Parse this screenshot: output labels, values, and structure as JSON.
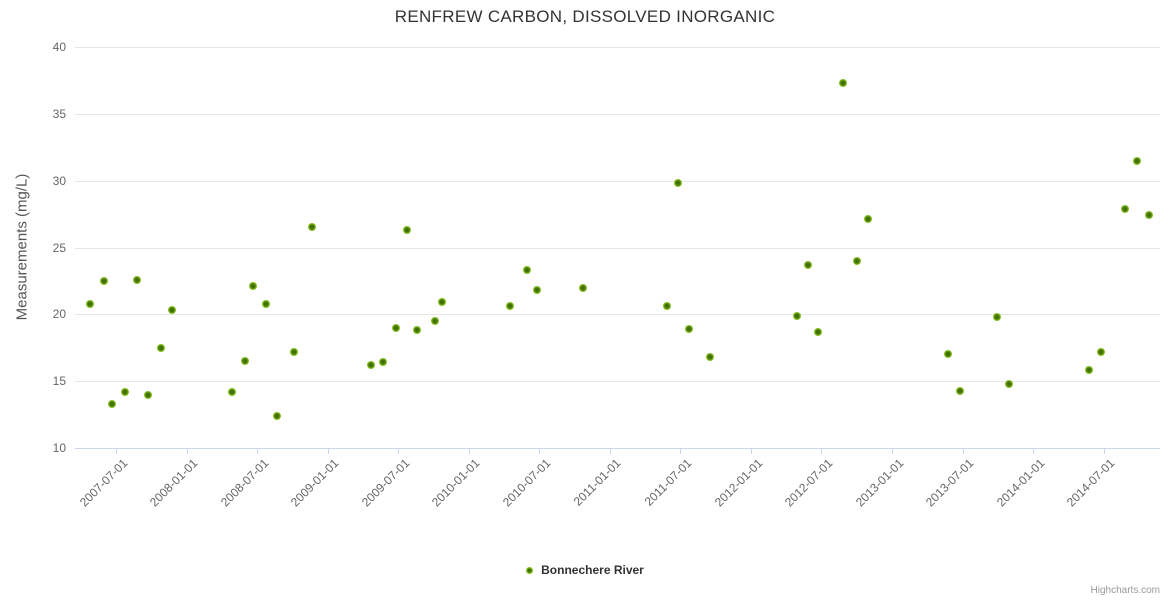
{
  "credit": "Highcharts.com",
  "chart_data": {
    "type": "scatter",
    "title": "RENFREW CARBON, DISSOLVED INORGANIC",
    "xlabel": "",
    "ylabel": "Measurements (mg/L)",
    "ylim": [
      10,
      40
    ],
    "yticks": [
      10,
      15,
      20,
      25,
      30,
      35,
      40
    ],
    "xticks": [
      "2007-07-01",
      "2008-01-01",
      "2008-07-01",
      "2009-01-01",
      "2009-07-01",
      "2010-01-01",
      "2010-07-01",
      "2011-01-01",
      "2011-07-01",
      "2012-01-01",
      "2012-07-01",
      "2013-01-01",
      "2013-07-01",
      "2014-01-01",
      "2014-07-01"
    ],
    "grid": true,
    "legend": {
      "position": "bottom",
      "entries": [
        "Bonnechere River"
      ]
    },
    "series": [
      {
        "name": "Bonnechere River",
        "color": "#76b007",
        "points": [
          {
            "date": "2007-04-25",
            "value": 20.8
          },
          {
            "date": "2007-06-01",
            "value": 22.5
          },
          {
            "date": "2007-06-22",
            "value": 13.3
          },
          {
            "date": "2007-07-25",
            "value": 14.2
          },
          {
            "date": "2007-08-24",
            "value": 22.6
          },
          {
            "date": "2007-09-22",
            "value": 14.0
          },
          {
            "date": "2007-10-27",
            "value": 17.5
          },
          {
            "date": "2007-11-24",
            "value": 20.3
          },
          {
            "date": "2008-04-27",
            "value": 14.2
          },
          {
            "date": "2008-06-01",
            "value": 16.5
          },
          {
            "date": "2008-06-20",
            "value": 22.1
          },
          {
            "date": "2008-07-25",
            "value": 20.8
          },
          {
            "date": "2008-08-22",
            "value": 12.4
          },
          {
            "date": "2008-10-05",
            "value": 17.2
          },
          {
            "date": "2008-11-22",
            "value": 26.5
          },
          {
            "date": "2009-04-21",
            "value": 16.2
          },
          {
            "date": "2009-05-23",
            "value": 16.4
          },
          {
            "date": "2009-06-27",
            "value": 19.0
          },
          {
            "date": "2009-07-24",
            "value": 26.3
          },
          {
            "date": "2009-08-20",
            "value": 18.8
          },
          {
            "date": "2009-10-05",
            "value": 19.5
          },
          {
            "date": "2009-10-22",
            "value": 20.9
          },
          {
            "date": "2010-04-17",
            "value": 20.6
          },
          {
            "date": "2010-05-29",
            "value": 23.3
          },
          {
            "date": "2010-06-26",
            "value": 21.8
          },
          {
            "date": "2010-10-23",
            "value": 22.0
          },
          {
            "date": "2011-05-26",
            "value": 20.6
          },
          {
            "date": "2011-06-25",
            "value": 29.8
          },
          {
            "date": "2011-07-23",
            "value": 18.9
          },
          {
            "date": "2011-09-18",
            "value": 16.8
          },
          {
            "date": "2012-04-28",
            "value": 19.9
          },
          {
            "date": "2012-05-26",
            "value": 23.7
          },
          {
            "date": "2012-06-23",
            "value": 18.7
          },
          {
            "date": "2012-08-27",
            "value": 37.3
          },
          {
            "date": "2012-10-01",
            "value": 24.0
          },
          {
            "date": "2012-10-29",
            "value": 27.1
          },
          {
            "date": "2013-05-25",
            "value": 17.0
          },
          {
            "date": "2013-06-26",
            "value": 14.3
          },
          {
            "date": "2013-09-28",
            "value": 19.8
          },
          {
            "date": "2013-10-29",
            "value": 14.8
          },
          {
            "date": "2014-05-23",
            "value": 15.8
          },
          {
            "date": "2014-06-25",
            "value": 17.2
          },
          {
            "date": "2014-08-26",
            "value": 27.9
          },
          {
            "date": "2014-09-26",
            "value": 31.5
          },
          {
            "date": "2014-10-26",
            "value": 27.4
          }
        ]
      }
    ]
  }
}
